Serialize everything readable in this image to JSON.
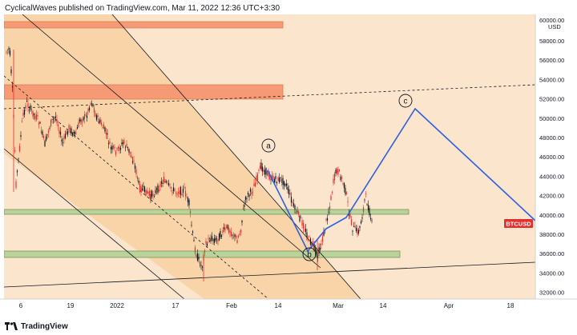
{
  "header": {
    "publisher_line": "CyclicalWaves published on TradingView.com, Mar 11, 2022 12:36 UTC+3:30"
  },
  "axis": {
    "currency": "USD",
    "price_ticks": [
      "58000.00",
      "56000.00",
      "54000.00",
      "52000.00",
      "50000.00",
      "48000.00",
      "46000.00",
      "44000.00",
      "42000.00",
      "40000.00",
      "38000.00",
      "36000.00",
      "34000.00",
      "32000.00"
    ],
    "top_partial_tick": "60000.00",
    "date_ticks": [
      "6",
      "19",
      "2022",
      "17",
      "Feb",
      "14",
      "Mar",
      "14",
      "Apr",
      "18"
    ]
  },
  "symbol_badge": "BTCUSD",
  "wave_labels": {
    "a": "a",
    "b": "b",
    "c": "c"
  },
  "footer": {
    "brand": "TradingView"
  },
  "colors": {
    "background": "#fbe5cc",
    "channel_fill": "#f8d2a4",
    "resistance_zone": "#f59a74",
    "support_zone": "#b9d39a",
    "projection_line": "#2e5fe5",
    "candle_up": "#131722",
    "candle_down": "#e53030",
    "badge": "#e53030"
  }
}
